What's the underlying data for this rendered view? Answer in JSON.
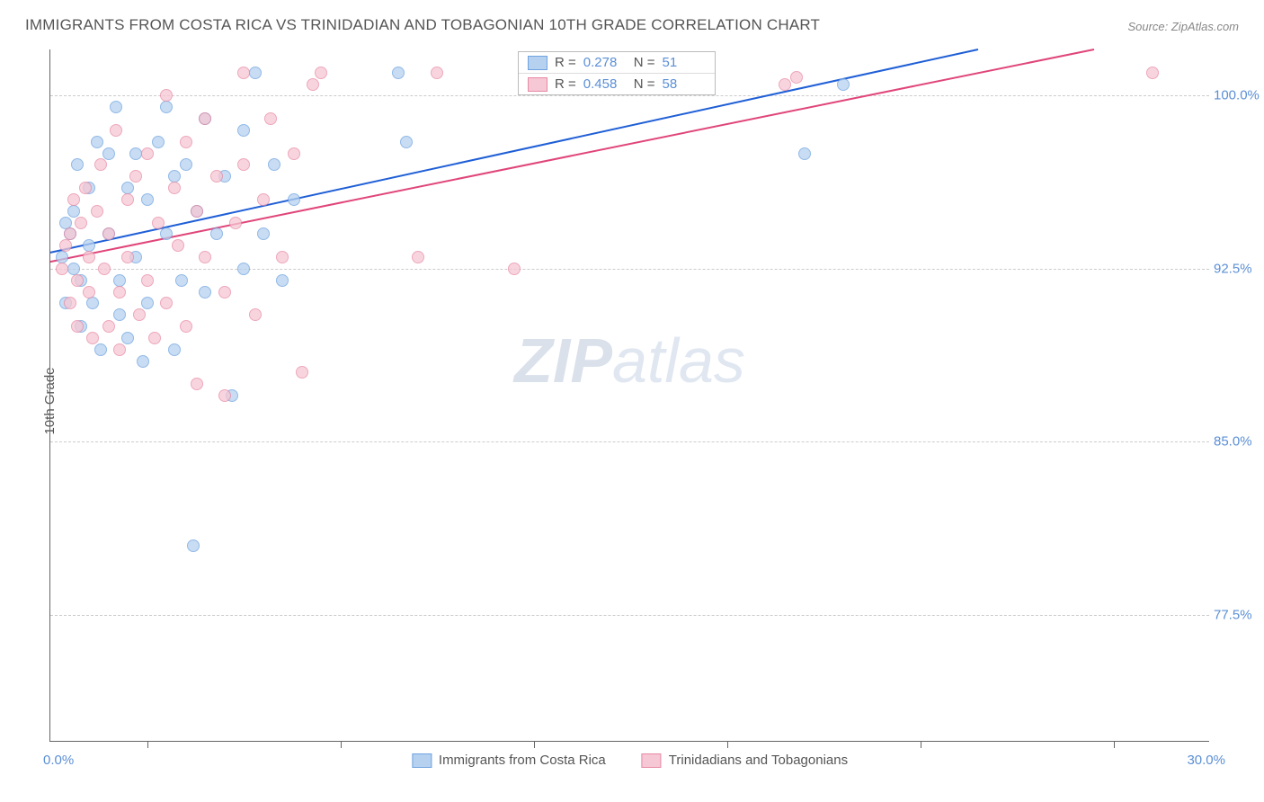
{
  "title": "IMMIGRANTS FROM COSTA RICA VS TRINIDADIAN AND TOBAGONIAN 10TH GRADE CORRELATION CHART",
  "source": "Source: ZipAtlas.com",
  "ylabel": "10th Grade",
  "watermark_zip": "ZIP",
  "watermark_atlas": "atlas",
  "chart": {
    "type": "scatter",
    "xlim": [
      0.0,
      30.0
    ],
    "ylim": [
      72.0,
      102.0
    ],
    "xlim_labels": [
      "0.0%",
      "30.0%"
    ],
    "ytick_values": [
      77.5,
      85.0,
      92.5,
      100.0
    ],
    "ytick_labels": [
      "77.5%",
      "85.0%",
      "92.5%",
      "100.0%"
    ],
    "xtick_values": [
      2.5,
      7.5,
      12.5,
      17.5,
      22.5,
      27.5
    ],
    "background_color": "#ffffff",
    "grid_color": "#cccccc",
    "axis_color": "#666666",
    "tick_label_color": "#5b8fd6",
    "marker_radius": 7,
    "marker_stroke_width": 1.5,
    "trend_line_width": 2
  },
  "series": [
    {
      "name": "Immigrants from Costa Rica",
      "legend_label": "Immigrants from Costa Rica",
      "fill": "#b6d1f0",
      "stroke": "#6ea3e0",
      "line_color": "#1f5fd6",
      "R": "0.278",
      "N": "51",
      "trend": {
        "x1": 0.0,
        "y1": 93.2,
        "x2": 24.0,
        "y2": 102.0
      },
      "points": [
        [
          0.3,
          93.0
        ],
        [
          0.4,
          94.5
        ],
        [
          0.4,
          91.0
        ],
        [
          0.5,
          94.0
        ],
        [
          0.6,
          92.5
        ],
        [
          0.6,
          95.0
        ],
        [
          0.7,
          97.0
        ],
        [
          0.8,
          92.0
        ],
        [
          0.8,
          90.0
        ],
        [
          1.0,
          96.0
        ],
        [
          1.0,
          93.5
        ],
        [
          1.1,
          91.0
        ],
        [
          1.2,
          98.0
        ],
        [
          1.3,
          89.0
        ],
        [
          1.5,
          97.5
        ],
        [
          1.5,
          94.0
        ],
        [
          1.7,
          99.5
        ],
        [
          1.8,
          92.0
        ],
        [
          1.8,
          90.5
        ],
        [
          2.0,
          96.0
        ],
        [
          2.0,
          89.5
        ],
        [
          2.2,
          97.5
        ],
        [
          2.2,
          93.0
        ],
        [
          2.4,
          88.5
        ],
        [
          2.5,
          95.5
        ],
        [
          2.5,
          91.0
        ],
        [
          2.8,
          98.0
        ],
        [
          3.0,
          99.5
        ],
        [
          3.0,
          94.0
        ],
        [
          3.2,
          96.5
        ],
        [
          3.2,
          89.0
        ],
        [
          3.4,
          92.0
        ],
        [
          3.5,
          97.0
        ],
        [
          3.7,
          80.5
        ],
        [
          3.8,
          95.0
        ],
        [
          4.0,
          99.0
        ],
        [
          4.0,
          91.5
        ],
        [
          4.3,
          94.0
        ],
        [
          4.5,
          96.5
        ],
        [
          4.7,
          87.0
        ],
        [
          5.0,
          98.5
        ],
        [
          5.0,
          92.5
        ],
        [
          5.3,
          101.0
        ],
        [
          5.5,
          94.0
        ],
        [
          5.8,
          97.0
        ],
        [
          6.0,
          92.0
        ],
        [
          6.3,
          95.5
        ],
        [
          9.0,
          101.0
        ],
        [
          9.2,
          98.0
        ],
        [
          19.5,
          97.5
        ],
        [
          20.5,
          100.5
        ]
      ]
    },
    {
      "name": "Trinidadians and Tobagonians",
      "legend_label": "Trinidadians and Tobagonians",
      "fill": "#f6c7d4",
      "stroke": "#e78aa5",
      "line_color": "#e0457a",
      "R": "0.458",
      "N": "58",
      "trend": {
        "x1": 0.0,
        "y1": 92.8,
        "x2": 27.0,
        "y2": 102.0
      },
      "points": [
        [
          0.3,
          92.5
        ],
        [
          0.4,
          93.5
        ],
        [
          0.5,
          91.0
        ],
        [
          0.5,
          94.0
        ],
        [
          0.6,
          95.5
        ],
        [
          0.7,
          92.0
        ],
        [
          0.7,
          90.0
        ],
        [
          0.8,
          94.5
        ],
        [
          0.9,
          96.0
        ],
        [
          1.0,
          91.5
        ],
        [
          1.0,
          93.0
        ],
        [
          1.1,
          89.5
        ],
        [
          1.2,
          95.0
        ],
        [
          1.3,
          97.0
        ],
        [
          1.4,
          92.5
        ],
        [
          1.5,
          90.0
        ],
        [
          1.5,
          94.0
        ],
        [
          1.7,
          98.5
        ],
        [
          1.8,
          91.5
        ],
        [
          1.8,
          89.0
        ],
        [
          2.0,
          95.5
        ],
        [
          2.0,
          93.0
        ],
        [
          2.2,
          96.5
        ],
        [
          2.3,
          90.5
        ],
        [
          2.5,
          97.5
        ],
        [
          2.5,
          92.0
        ],
        [
          2.7,
          89.5
        ],
        [
          2.8,
          94.5
        ],
        [
          3.0,
          100.0
        ],
        [
          3.0,
          91.0
        ],
        [
          3.2,
          96.0
        ],
        [
          3.3,
          93.5
        ],
        [
          3.5,
          98.0
        ],
        [
          3.5,
          90.0
        ],
        [
          3.8,
          95.0
        ],
        [
          3.8,
          87.5
        ],
        [
          4.0,
          99.0
        ],
        [
          4.0,
          93.0
        ],
        [
          4.3,
          96.5
        ],
        [
          4.5,
          91.5
        ],
        [
          4.5,
          87.0
        ],
        [
          4.8,
          94.5
        ],
        [
          5.0,
          101.0
        ],
        [
          5.0,
          97.0
        ],
        [
          5.3,
          90.5
        ],
        [
          5.5,
          95.5
        ],
        [
          5.7,
          99.0
        ],
        [
          6.0,
          93.0
        ],
        [
          6.3,
          97.5
        ],
        [
          6.5,
          88.0
        ],
        [
          7.0,
          101.0
        ],
        [
          9.5,
          93.0
        ],
        [
          10.0,
          101.0
        ],
        [
          12.0,
          92.5
        ],
        [
          19.0,
          100.5
        ],
        [
          19.3,
          100.8
        ],
        [
          28.5,
          101.0
        ],
        [
          6.8,
          100.5
        ]
      ]
    }
  ],
  "legend_labels": {
    "R_prefix": "R  =",
    "N_prefix": "N  ="
  }
}
